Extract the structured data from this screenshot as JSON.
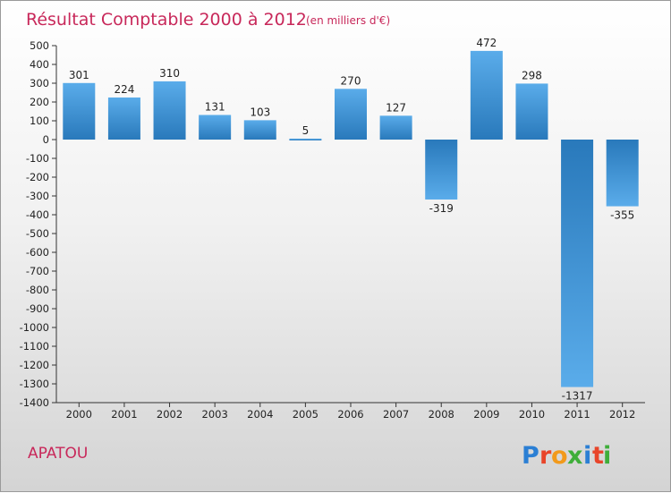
{
  "header": {
    "title": "Résultat Comptable 2000 à 2012",
    "subtitle": "(en milliers d'€)"
  },
  "footer": {
    "commune": "APATOU",
    "brand_letters": [
      "P",
      "r",
      "o",
      "x",
      "i",
      "t",
      "i"
    ],
    "brand_colors": [
      "#2b7fd4",
      "#e8452a",
      "#f29a1b",
      "#3fae3a",
      "#2b7fd4",
      "#e8452a",
      "#3fae3a"
    ]
  },
  "colors": {
    "bar_light": "#5aacea",
    "bar_dark": "#2979bb",
    "axis": "#333333",
    "title": "#c8285a"
  },
  "chart_data": {
    "type": "bar",
    "title": "Résultat Comptable 2000 à 2012",
    "unit_note": "(en milliers d'€)",
    "xlabel": "",
    "ylabel": "",
    "categories": [
      "2000",
      "2001",
      "2002",
      "2003",
      "2004",
      "2005",
      "2006",
      "2007",
      "2008",
      "2009",
      "2010",
      "2011",
      "2012"
    ],
    "values": [
      301,
      224,
      310,
      131,
      103,
      5,
      270,
      127,
      -319,
      472,
      298,
      -1317,
      -355
    ],
    "ylim": [
      -1400,
      500
    ],
    "yticks": [
      500,
      400,
      300,
      200,
      100,
      0,
      -100,
      -200,
      -300,
      -400,
      -500,
      -600,
      -700,
      -800,
      -900,
      -1000,
      -1100,
      -1200,
      -1300,
      -1400
    ],
    "grid": false,
    "legend": "none"
  }
}
